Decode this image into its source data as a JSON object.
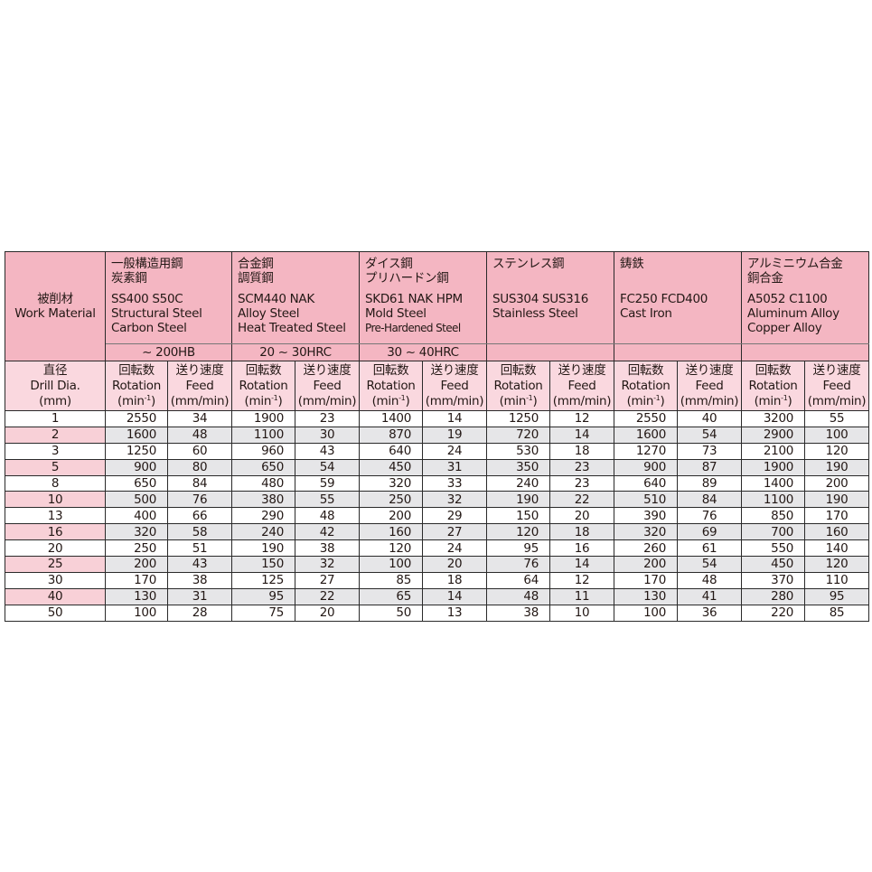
{
  "header": {
    "work_material_jp": "被削材",
    "work_material_en": "Work Material",
    "dia_jp": "直径",
    "dia_en": "Drill Dia.",
    "dia_unit": "(mm)",
    "rot_jp": "回転数",
    "rot_en": "Rotation",
    "rot_unit": "(min",
    "rot_sup": "-1",
    "rot_close": ")",
    "feed_jp": "送り速度",
    "feed_en": "Feed",
    "feed_unit": "(mm/min)"
  },
  "materials": [
    {
      "jp": [
        "一般構造用鋼",
        "炭素鋼"
      ],
      "en": [
        "SS400 S50C",
        "Structural Steel",
        "Carbon Steel"
      ],
      "hardness": "~ 200HB"
    },
    {
      "jp": [
        "合金鋼",
        "調質鋼"
      ],
      "en": [
        "SCM440 NAK",
        "Alloy Steel",
        "Heat Treated Steel"
      ],
      "hardness": "20 ~ 30HRC"
    },
    {
      "jp": [
        "ダイス鋼",
        "プリハードン鋼"
      ],
      "en": [
        "SKD61 NAK HPM",
        "Mold Steel",
        "Pre-Hardened Steel"
      ],
      "hardness": "30 ~ 40HRC"
    },
    {
      "jp": [
        "ステンレス鋼"
      ],
      "en": [
        "SUS304 SUS316",
        "Stainless Steel"
      ],
      "hardness": ""
    },
    {
      "jp": [
        "鋳鉄"
      ],
      "en": [
        "FC250  FCD400",
        "Cast Iron"
      ],
      "hardness": ""
    },
    {
      "jp": [
        "アルミニウム合金",
        "銅合金"
      ],
      "en": [
        "A5052 C1100",
        "Aluminum Alloy",
        "Copper Alloy"
      ],
      "hardness": ""
    }
  ],
  "rows": [
    [
      "1",
      "2550",
      "34",
      "1900",
      "23",
      "1400",
      "14",
      "1250",
      "12",
      "2550",
      "40",
      "3200",
      "55"
    ],
    [
      "2",
      "1600",
      "48",
      "1100",
      "30",
      "870",
      "19",
      "720",
      "14",
      "1600",
      "54",
      "2900",
      "100"
    ],
    [
      "3",
      "1250",
      "60",
      "960",
      "43",
      "640",
      "24",
      "530",
      "18",
      "1270",
      "73",
      "2100",
      "120"
    ],
    [
      "5",
      "900",
      "80",
      "650",
      "54",
      "450",
      "31",
      "350",
      "23",
      "900",
      "87",
      "1900",
      "190"
    ],
    [
      "8",
      "650",
      "84",
      "480",
      "59",
      "320",
      "33",
      "240",
      "23",
      "640",
      "89",
      "1400",
      "200"
    ],
    [
      "10",
      "500",
      "76",
      "380",
      "55",
      "250",
      "32",
      "190",
      "22",
      "510",
      "84",
      "1100",
      "190"
    ],
    [
      "13",
      "400",
      "66",
      "290",
      "48",
      "200",
      "29",
      "150",
      "20",
      "390",
      "76",
      "850",
      "170"
    ],
    [
      "16",
      "320",
      "58",
      "240",
      "42",
      "160",
      "27",
      "120",
      "18",
      "320",
      "69",
      "700",
      "160"
    ],
    [
      "20",
      "250",
      "51",
      "190",
      "38",
      "120",
      "24",
      "95",
      "16",
      "260",
      "61",
      "550",
      "140"
    ],
    [
      "25",
      "200",
      "43",
      "150",
      "32",
      "100",
      "20",
      "76",
      "14",
      "200",
      "54",
      "450",
      "120"
    ],
    [
      "30",
      "170",
      "38",
      "125",
      "27",
      "85",
      "18",
      "64",
      "12",
      "170",
      "48",
      "370",
      "110"
    ],
    [
      "40",
      "130",
      "31",
      "95",
      "22",
      "65",
      "14",
      "48",
      "11",
      "130",
      "41",
      "280",
      "95"
    ],
    [
      "50",
      "100",
      "28",
      "75",
      "20",
      "50",
      "13",
      "38",
      "10",
      "100",
      "36",
      "220",
      "85"
    ]
  ],
  "colors": {
    "header_pink": "#f4b6c2",
    "subheader_pink": "#fad8df",
    "alt_row_gray": "#e6e6e8",
    "alt_row_pink": "#f8d0d7"
  }
}
